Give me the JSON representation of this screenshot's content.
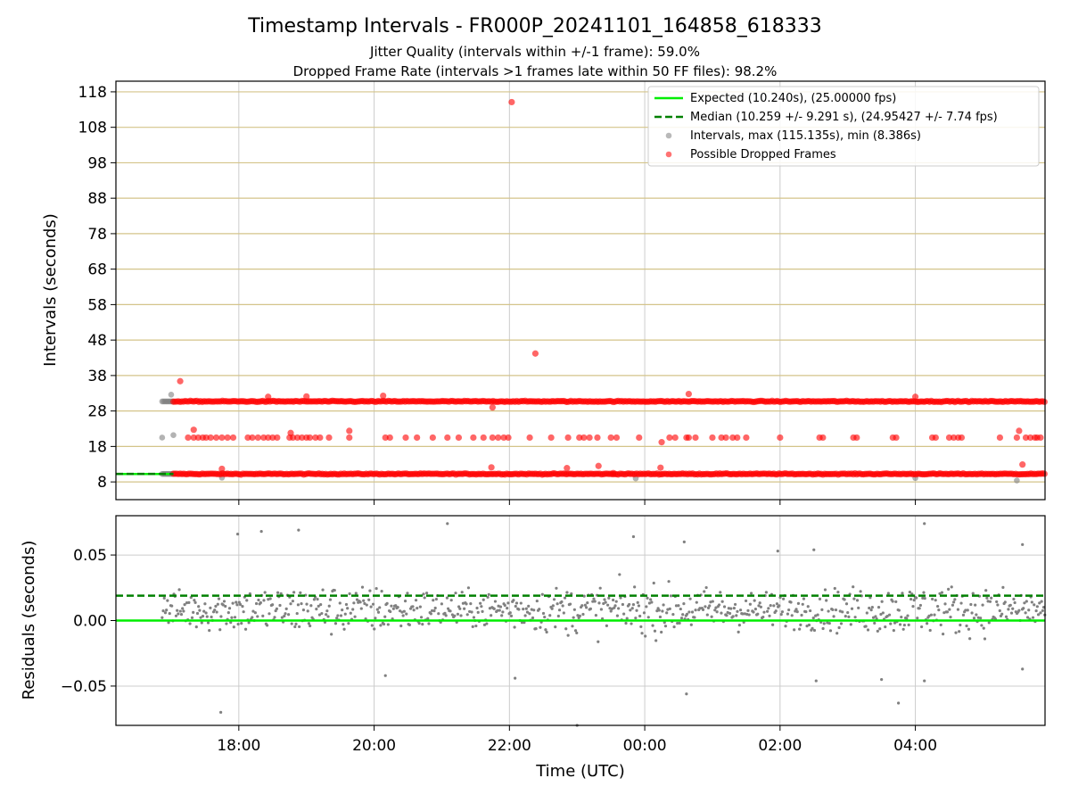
{
  "colors": {
    "expected": "#00ee00",
    "median": "#008000",
    "intervals": "#808080",
    "dropped": "#ff0000",
    "hgrid": "#d4c48a",
    "vgrid": "#cccccc"
  },
  "chart_data": [
    {
      "type": "scatter",
      "title": "Timestamp Intervals - FR000P_20241101_164858_618333",
      "subtitle_1": "Jitter Quality (intervals within +/-1 frame): 59.0%",
      "subtitle_2": "Dropped Frame Rate (intervals >1 frames late within 50 FF files): 98.2%",
      "ylabel": "Intervals (seconds)",
      "xlim": [
        "16:11",
        "05:55"
      ],
      "ylim": [
        3,
        121
      ],
      "yticks": [
        "8",
        "18",
        "28",
        "38",
        "48",
        "58",
        "68",
        "78",
        "88",
        "98",
        "108",
        "118"
      ],
      "grid": true,
      "legend_position": "upper-right",
      "legend": {
        "expected": "Expected (10.240s), (25.00000 fps)",
        "median": "Median (10.259 +/- 9.291 s), (24.95427 +/- 7.74 fps)",
        "intervals": "Intervals, max (115.135s), min (8.386s)",
        "dropped": "Possible Dropped Frames"
      },
      "series": [
        {
          "name": "Expected (10.240s), (25.00000 fps)",
          "y": 10.24,
          "x_range": [
            "16:11",
            "17:02"
          ]
        },
        {
          "name": "Median (10.259 +/- 9.291 s), (24.95427 +/- 7.74 fps)",
          "y": 10.259,
          "x_range": [
            "16:11",
            "17:02"
          ]
        },
        {
          "name": "Intervals, max (115.135s), min (8.386s)",
          "bands": [
            {
              "y": 10.24,
              "x_range": [
                "16:52",
                "17:02"
              ]
            },
            {
              "y": 30.7,
              "x_range": [
                "16:52",
                "17:02"
              ]
            }
          ],
          "points": [
            {
              "x": "16:52",
              "y": 20.5
            },
            {
              "x": "17:00",
              "y": 32.6
            },
            {
              "x": "17:02",
              "y": 21.2
            },
            {
              "x": "17:45",
              "y": 9.2
            },
            {
              "x": "23:52",
              "y": 9.0
            },
            {
              "x": "04:00",
              "y": 9.1
            },
            {
              "x": "05:30",
              "y": 8.4
            }
          ]
        },
        {
          "name": "Possible Dropped Frames",
          "bands": [
            {
              "y": 10.24,
              "x_range": [
                "17:02",
                "05:55"
              ]
            },
            {
              "y": 30.7,
              "x_range": [
                "17:02",
                "05:55"
              ]
            }
          ],
          "points": [
            {
              "x": "17:08",
              "y": 36.4
            },
            {
              "x": "22:02",
              "y": 115.1
            },
            {
              "x": "22:23",
              "y": 44.2
            },
            {
              "x": "21:45",
              "y": 29.0
            },
            {
              "x": "23:19",
              "y": 12.5
            },
            {
              "x": "22:51",
              "y": 11.9
            },
            {
              "x": "17:20",
              "y": 22.7
            },
            {
              "x": "19:38",
              "y": 22.4
            },
            {
              "x": "18:46",
              "y": 21.8
            },
            {
              "x": "00:39",
              "y": 32.8
            },
            {
              "x": "00:15",
              "y": 19.2
            },
            {
              "x": "05:32",
              "y": 22.4
            },
            {
              "x": "05:35",
              "y": 12.9
            },
            {
              "x": "18:26",
              "y": 32.0
            },
            {
              "x": "19:00",
              "y": 32.1
            },
            {
              "x": "20:08",
              "y": 32.3
            },
            {
              "x": "17:45",
              "y": 11.7
            },
            {
              "x": "21:44",
              "y": 12.1
            },
            {
              "x": "23:32",
              "y": 10.5
            },
            {
              "x": "00:14",
              "y": 12.0
            },
            {
              "x": "04:00",
              "y": 32.0
            }
          ],
          "rows": [
            {
              "y": 20.5,
              "x": [
                "17:15",
                "17:20",
                "17:24",
                "17:28",
                "17:31",
                "17:35",
                "17:40",
                "17:45",
                "17:50",
                "17:55",
                "18:08",
                "18:12",
                "18:17",
                "18:22",
                "18:26",
                "18:30",
                "18:34",
                "18:45",
                "18:48",
                "18:52",
                "18:56",
                "19:00",
                "19:03",
                "19:08",
                "19:12",
                "19:20",
                "19:38",
                "20:10",
                "20:14",
                "20:28",
                "20:38",
                "20:52",
                "21:05",
                "21:15",
                "21:28",
                "21:37",
                "21:45",
                "21:50",
                "21:55",
                "21:59",
                "22:18",
                "22:37",
                "22:52",
                "23:02",
                "23:06",
                "23:11",
                "23:18",
                "23:30",
                "23:35",
                "23:55",
                "00:22",
                "00:27",
                "00:37",
                "00:39",
                "00:45",
                "01:00",
                "01:08",
                "01:12",
                "01:18",
                "01:22",
                "01:30",
                "02:00",
                "02:35",
                "02:38",
                "03:05",
                "03:08",
                "03:40",
                "03:43",
                "04:15",
                "04:18",
                "04:30",
                "04:34",
                "04:38",
                "04:41",
                "05:15",
                "05:30",
                "05:38",
                "05:42",
                "05:46",
                "05:48",
                "05:51"
              ]
            }
          ]
        }
      ]
    },
    {
      "type": "scatter",
      "xlabel": "Time (UTC)",
      "ylabel": "Residuals (seconds)",
      "xticks": [
        "18:00",
        "20:00",
        "22:00",
        "00:00",
        "02:00",
        "04:00"
      ],
      "yticks": [
        "0.05",
        "0.00",
        "−0.05"
      ],
      "ylim": [
        -0.08,
        0.08
      ],
      "grid": true,
      "series": [
        {
          "name": "Expected",
          "y": 0.0
        },
        {
          "name": "Median",
          "y": 0.019
        },
        {
          "name": "Residuals",
          "points": [
            {
              "x": "17:44",
              "y": -0.07
            },
            {
              "x": "17:59",
              "y": 0.066
            },
            {
              "x": "18:20",
              "y": 0.068
            },
            {
              "x": "18:53",
              "y": 0.069
            },
            {
              "x": "21:05",
              "y": 0.074
            },
            {
              "x": "20:10",
              "y": -0.042
            },
            {
              "x": "22:05",
              "y": -0.044
            },
            {
              "x": "23:00",
              "y": -0.08
            },
            {
              "x": "23:50",
              "y": 0.064
            },
            {
              "x": "00:35",
              "y": 0.06
            },
            {
              "x": "00:37",
              "y": -0.056
            },
            {
              "x": "01:58",
              "y": 0.053
            },
            {
              "x": "02:30",
              "y": 0.054
            },
            {
              "x": "02:32",
              "y": -0.046
            },
            {
              "x": "03:30",
              "y": -0.045
            },
            {
              "x": "03:45",
              "y": -0.063
            },
            {
              "x": "04:08",
              "y": -0.046
            },
            {
              "x": "04:08",
              "y": 0.074
            },
            {
              "x": "05:35",
              "y": 0.058
            },
            {
              "x": "05:35",
              "y": -0.037
            }
          ],
          "bulk_range": [
            -0.032,
            0.042
          ],
          "bulk_center": 0.008,
          "bulk_x_range": [
            "16:52",
            "05:55"
          ]
        }
      ]
    }
  ]
}
